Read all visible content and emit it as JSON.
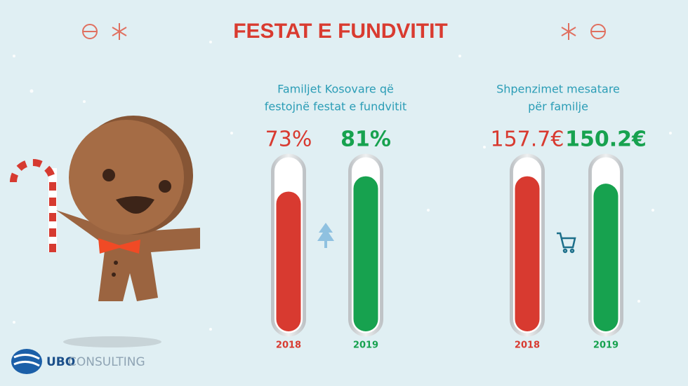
{
  "title": "FESTAT E FUNDVITIT",
  "brand": [
    "UBO",
    "CONSULTING"
  ],
  "chart_data": [
    {
      "type": "bar",
      "subtitle": [
        "Familjet Kosovare që",
        "festojnë festat e fundvitit"
      ],
      "categories": [
        "2018",
        "2019"
      ],
      "values": [
        73,
        81
      ],
      "value_labels": [
        "73%",
        "81%"
      ],
      "colors": [
        "#d83a30",
        "#17a24f"
      ]
    },
    {
      "type": "bar",
      "subtitle": [
        "Shpenzimet mesatare",
        "për familje"
      ],
      "categories": [
        "2018",
        "2019"
      ],
      "values": [
        157.7,
        150.2
      ],
      "value_labels": [
        "157.7€",
        "150.2€"
      ],
      "colors": [
        "#d83a30",
        "#17a24f"
      ]
    }
  ]
}
